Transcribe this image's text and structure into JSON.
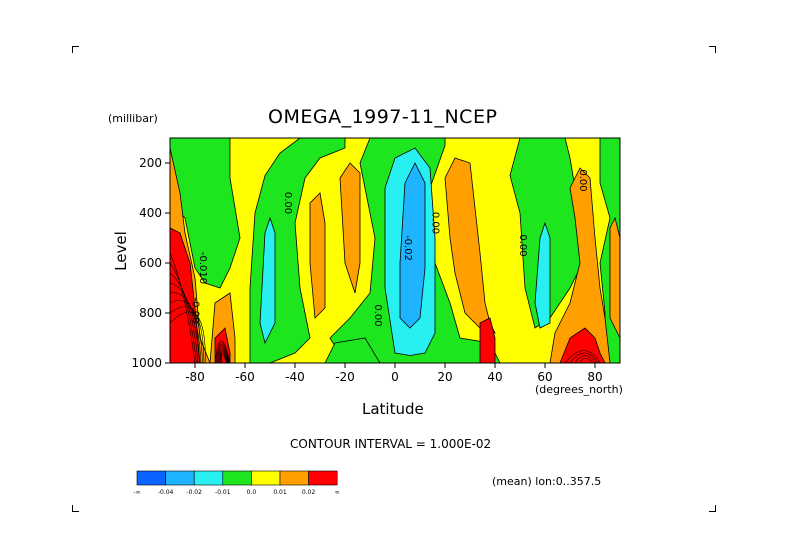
{
  "chart_data": {
    "type": "contour",
    "title": "OMEGA_1997-11_NCEP",
    "xlabel": "Latitude",
    "ylabel": "Level",
    "x_units": "(degrees_north)",
    "y_units": "(millibar)",
    "xlim": [
      -90,
      90
    ],
    "ylim": [
      1000,
      100
    ],
    "xticks": [
      -80,
      -60,
      -40,
      -20,
      0,
      20,
      40,
      60,
      80
    ],
    "yticks": [
      200,
      400,
      600,
      800,
      1000
    ],
    "contour_interval_text": "CONTOUR INTERVAL = 1.000E-02",
    "mean_note": "(mean) lon:0..357.5",
    "contour_labels": [
      {
        "text": "0.00",
        "x": -44,
        "y": 360
      },
      {
        "text": "0.00",
        "x": 15,
        "y": 440
      },
      {
        "text": "-0.02",
        "x": 4,
        "y": 540
      },
      {
        "text": "0.00",
        "x": -8,
        "y": 810
      },
      {
        "text": "0.00",
        "x": 50,
        "y": 530
      },
      {
        "text": "0.00",
        "x": 74,
        "y": 270
      },
      {
        "text": "-0.010",
        "x": -78,
        "y": 620
      },
      {
        "text": "-0.00",
        "x": -81,
        "y": 790
      }
    ],
    "colorbar": {
      "colors": [
        "#0a64ff",
        "#1eb4ff",
        "#28f0f0",
        "#1ee61e",
        "#ffff00",
        "#ffa000",
        "#ff0000"
      ],
      "labels": [
        "-∞",
        "-0.04",
        "-0.02",
        "-0.01",
        "0.0",
        "0.01",
        "0.02",
        "∞"
      ]
    },
    "fill_colors": {
      "background": "#ffff00",
      "green": "#1ee61e",
      "orange": "#ffa000",
      "red": "#ff0000",
      "cyan": "#28f0f0",
      "blue": "#1eb4ff"
    }
  }
}
